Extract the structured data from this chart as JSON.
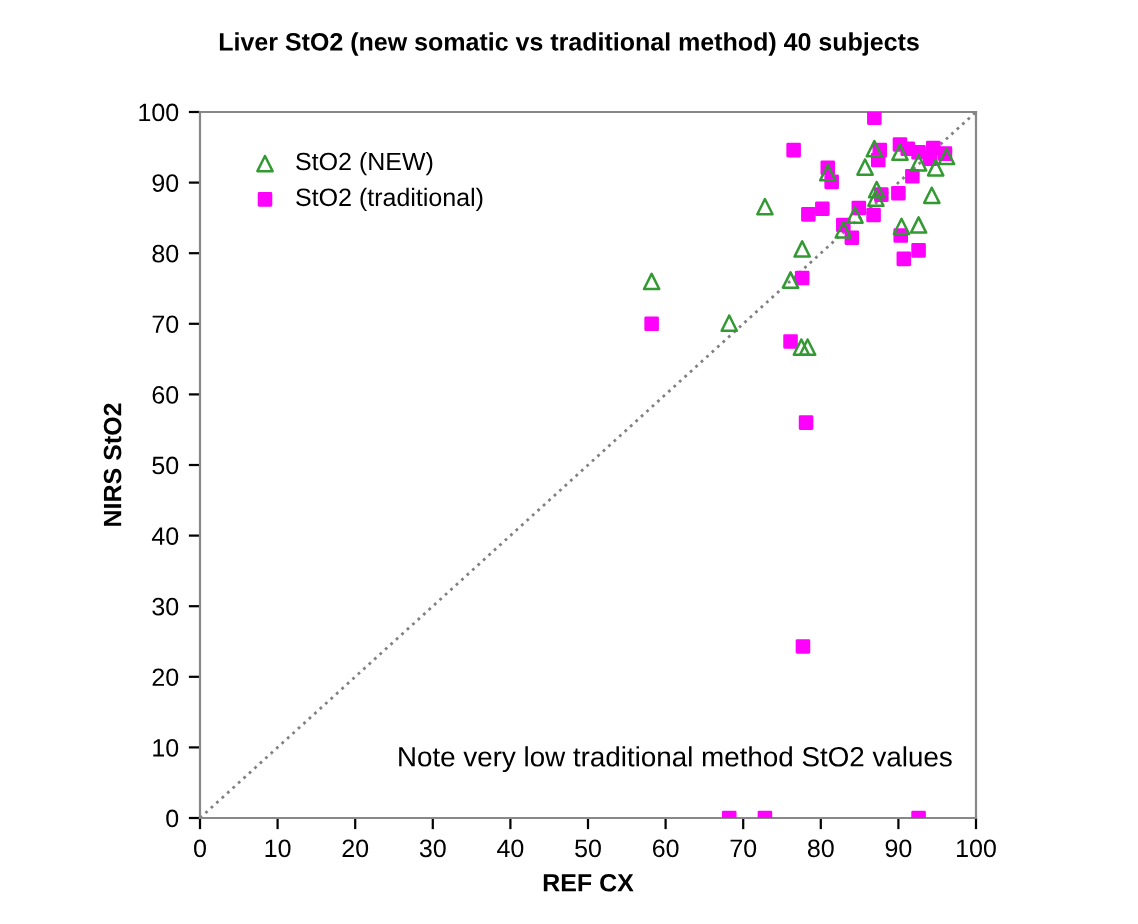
{
  "chart_data": {
    "type": "scatter",
    "title": "Liver StO2 (new somatic vs traditional method) 40 subjects",
    "xlabel": "REF CX",
    "ylabel": "NIRS StO2",
    "xlim": [
      0,
      100
    ],
    "ylim": [
      0,
      100
    ],
    "xticks": [
      0,
      10,
      20,
      30,
      40,
      50,
      60,
      70,
      80,
      90,
      100
    ],
    "yticks": [
      0,
      10,
      20,
      30,
      40,
      50,
      60,
      70,
      80,
      90,
      100
    ],
    "grid": false,
    "legend": "top left",
    "annotations": [
      "Note very low traditional method StO2 values"
    ],
    "series": [
      {
        "name": "StO2 (NEW)",
        "color": "#339933",
        "marker": "triangle",
        "x": [
          58.2,
          68.2,
          72.8,
          76.1,
          77.6,
          77.5,
          78.3,
          80.9,
          82.9,
          84.4,
          85.7,
          86.9,
          87.1,
          87.2,
          90.2,
          90.4,
          92.6,
          92.6,
          94.3,
          94.8,
          96.2
        ],
        "values": [
          76.0,
          70.1,
          86.6,
          76.2,
          80.6,
          66.7,
          66.7,
          91.4,
          83.3,
          85.4,
          92.2,
          94.8,
          87.8,
          89.0,
          94.3,
          83.8,
          84.0,
          92.8,
          88.2,
          92.1,
          93.7
        ]
      },
      {
        "name": "StO2 (traditional)",
        "color": "#ff00ff",
        "marker": "square",
        "x": [
          58.2,
          68.2,
          72.8,
          76.1,
          76.5,
          77.6,
          77.7,
          78.1,
          78.4,
          80.2,
          80.9,
          81.4,
          82.9,
          84.0,
          84.9,
          86.8,
          86.9,
          87.4,
          87.6,
          87.8,
          90.0,
          90.2,
          90.3,
          90.7,
          91.2,
          91.8,
          92.6,
          92.6,
          92.6,
          94.1,
          94.5,
          96.0
        ],
        "values": [
          70.0,
          0,
          0,
          67.5,
          94.6,
          76.5,
          24.3,
          56.0,
          85.5,
          86.3,
          92.1,
          90.1,
          84.0,
          82.2,
          86.4,
          85.4,
          99.2,
          93.2,
          94.6,
          88.3,
          88.5,
          95.4,
          82.5,
          79.2,
          94.8,
          90.9,
          94.3,
          80.4,
          0,
          93.4,
          94.9,
          94.1
        ]
      },
      {
        "type": "line",
        "color": "#808080",
        "line_style": "dotted",
        "marker": "none",
        "x": [
          0,
          100
        ],
        "values": [
          0,
          100
        ]
      }
    ]
  }
}
